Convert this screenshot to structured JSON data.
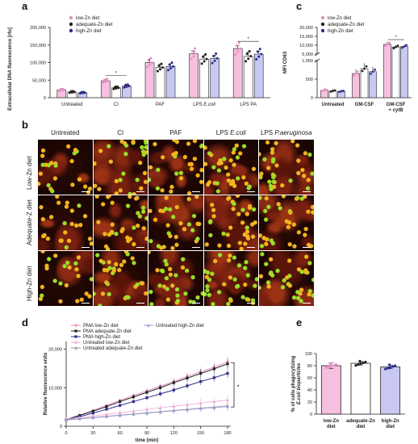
{
  "panels": {
    "a": "a",
    "b": "b",
    "c": "c",
    "d": "d",
    "e": "e"
  },
  "colors": {
    "low": "#e98fc6",
    "adequate": "#222222",
    "high": "#2d2d8c",
    "bar_low": "#f6bfe0",
    "bar_adequate": "#ffffff",
    "bar_high": "#c8c8f2",
    "untreated_low_line": "#f0a9d4",
    "untreated_adequate_line": "#9a9a9a",
    "untreated_high_line": "#9a9ad9"
  },
  "chart_a": {
    "ylabel": "Extracellular DNA fluorescence [rfu]",
    "ylim": [
      0,
      200000
    ],
    "yticks": [
      "0",
      "50,000",
      "100,000",
      "150,000",
      "200,000"
    ],
    "legend": [
      "low-Zn diet",
      "adequate-Zn diet",
      "high-Zn diet"
    ],
    "groups": [
      "Untreated",
      "CI",
      "PAF",
      "LPS E.coli",
      "LPS PA"
    ],
    "group_labels": [
      {
        "pre": "Untreated",
        "it": ""
      },
      {
        "pre": "CI",
        "it": ""
      },
      {
        "pre": "PAF",
        "it": ""
      },
      {
        "pre": "LPS ",
        "it": "E.coli"
      },
      {
        "pre": "LPS PA",
        "it": ""
      }
    ],
    "series": [
      {
        "name": "low-Zn diet",
        "values": [
          22000,
          48000,
          100000,
          125000,
          140000
        ],
        "err": [
          4000,
          4000,
          10000,
          8000,
          9000
        ]
      },
      {
        "name": "adequate-Zn diet",
        "values": [
          16000,
          28000,
          86000,
          110000,
          118000
        ],
        "err": [
          5000,
          6000,
          10000,
          10000,
          12000
        ]
      },
      {
        "name": "high-Zn diet",
        "values": [
          14000,
          33000,
          89000,
          112000,
          124000
        ],
        "err": [
          4000,
          6000,
          8000,
          9000,
          9000
        ]
      }
    ],
    "significance": [
      {
        "group": 1,
        "label": "*"
      },
      {
        "group": 4,
        "label": "*"
      }
    ]
  },
  "chart_c": {
    "ylabel": "MFI CD63",
    "yticks": [
      "0",
      "500",
      "1,000",
      "5,000",
      "10,000",
      "15,000",
      "20,000"
    ],
    "legend": [
      "low-Zn diet",
      "adequate-Zn diet",
      "high-Zn diet"
    ],
    "groups": [
      "Untreated",
      "GM-CSF",
      "GM-CSF + cytB"
    ],
    "group_labels": [
      [
        "Untreated"
      ],
      [
        "GM-CSF"
      ],
      [
        "GM-CSF",
        "+ cytB"
      ]
    ],
    "series": [
      {
        "name": "low-Zn diet",
        "values": [
          200,
          650,
          10500
        ],
        "err": [
          60,
          120,
          1500
        ]
      },
      {
        "name": "adequate-Zn diet",
        "values": [
          180,
          780,
          9000
        ],
        "err": [
          60,
          150,
          1200
        ]
      },
      {
        "name": "high-Zn diet",
        "values": [
          170,
          700,
          9300
        ],
        "err": [
          50,
          130,
          1000
        ]
      }
    ],
    "significance": [
      {
        "group": 2,
        "label": "*"
      }
    ]
  },
  "micro": {
    "columns": [
      {
        "pre": "Untreated",
        "it": ""
      },
      {
        "pre": "CI",
        "it": ""
      },
      {
        "pre": "PAF",
        "it": ""
      },
      {
        "pre": "LPS ",
        "it": "E.coli"
      },
      {
        "pre": "LPS ",
        "it": "P.aeruginosa"
      }
    ],
    "rows": [
      "Low-Zn diet",
      "Adequate-Z diet",
      "High-Zn diet"
    ]
  },
  "chart_d": {
    "ylabel": "Relative fluorescence units",
    "xlabel": "time [min]",
    "ylim": [
      0,
      22000
    ],
    "yticks": [
      "0",
      "10,000",
      "20,000"
    ],
    "xticks": [
      "0",
      "30",
      "60",
      "90",
      "120",
      "150",
      "180"
    ],
    "x": [
      0,
      15,
      30,
      45,
      60,
      75,
      90,
      105,
      120,
      135,
      150,
      165,
      180
    ],
    "legend_col1": [
      "PMA low-Zn diet",
      "PMA adequate-Zn diet",
      "PMA high-Zn diet",
      "Untreated low-Zn diet",
      "Untreated adequate-Zn diet"
    ],
    "legend_col2": [
      "Untreated high-Zn diet"
    ],
    "series": [
      {
        "name": "PMA low-Zn diet",
        "values": [
          1800,
          2900,
          4100,
          5400,
          6700,
          8000,
          9200,
          10400,
          11600,
          12900,
          14200,
          15300,
          16700
        ]
      },
      {
        "name": "PMA adequate-Zn diet",
        "values": [
          1700,
          2800,
          3900,
          5100,
          6400,
          7600,
          8800,
          10000,
          11300,
          12500,
          13700,
          14900,
          16200
        ]
      },
      {
        "name": "PMA high-Zn diet",
        "values": [
          1600,
          2500,
          3400,
          4400,
          5400,
          6400,
          7400,
          8400,
          9400,
          10500,
          11600,
          12600,
          13700
        ]
      },
      {
        "name": "Untreated low-Zn diet",
        "values": [
          1900,
          2300,
          2700,
          3100,
          3500,
          3900,
          4400,
          4800,
          5200,
          5600,
          6000,
          6400,
          6800
        ]
      },
      {
        "name": "Untreated adequate-Zn diet",
        "values": [
          1700,
          2000,
          2300,
          2600,
          2900,
          3200,
          3500,
          3800,
          4100,
          4400,
          4700,
          5000,
          5300
        ]
      },
      {
        "name": "Untreated high-Zn diet",
        "values": [
          1600,
          1900,
          2200,
          2500,
          2800,
          3100,
          3400,
          3700,
          4000,
          4300,
          4600,
          4800,
          5100
        ]
      }
    ],
    "significance": "*"
  },
  "chart_e": {
    "ylabel_line1": "% of cells phagocytizing",
    "ylabel_line2": "E.coli bioparticles",
    "ylim": [
      0,
      100
    ],
    "yticks": [
      "0",
      "20",
      "40",
      "60",
      "80",
      "100"
    ],
    "groups": [
      [
        "low-Zn",
        "diet"
      ],
      [
        "adequate-Zn",
        "diet"
      ],
      [
        "high-Zn",
        "diet"
      ]
    ],
    "values": [
      80,
      84,
      78
    ],
    "err": [
      5,
      3,
      3
    ]
  }
}
